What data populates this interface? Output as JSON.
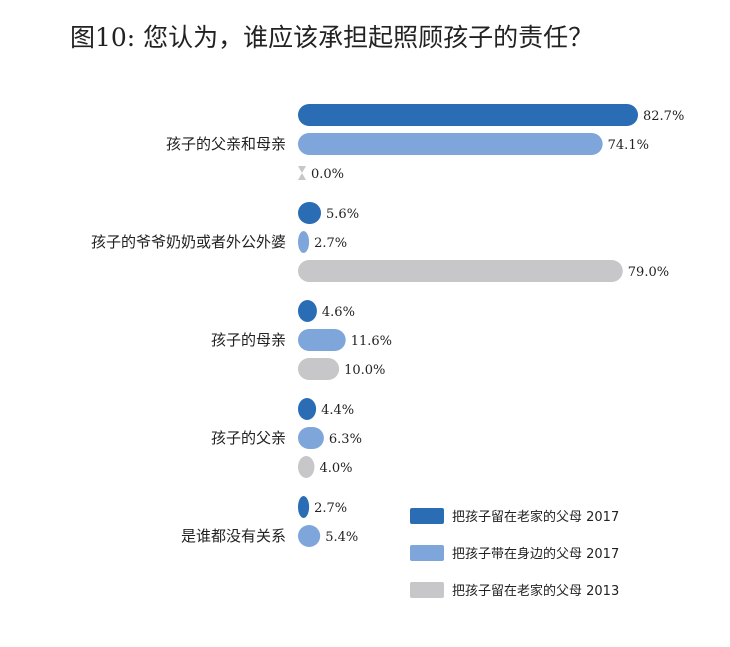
{
  "title": "图10: 您认为，谁应该承担起照顾孩子的责任？",
  "colors": {
    "s2017_home": "#2a6db5",
    "s2017_with": "#7fa6db",
    "s2013_home": "#c7c7c9"
  },
  "chart_data": {
    "type": "bar",
    "orientation": "horizontal",
    "categories": [
      "孩子的父亲和母亲",
      "孩子的爷爷奶奶或者外公外婆",
      "孩子的母亲",
      "孩子的父亲",
      "是谁都没有关系"
    ],
    "series": [
      {
        "name": "把孩子留在老家的父母 2017",
        "color": "#2a6db5",
        "values": [
          82.7,
          5.6,
          4.6,
          4.4,
          2.7
        ],
        "labels": [
          "82.7%",
          "5.6%",
          "4.6%",
          "4.4%",
          "2.7%"
        ]
      },
      {
        "name": "把孩子带在身边的父母 2017",
        "color": "#7fa6db",
        "values": [
          74.1,
          2.7,
          11.6,
          6.3,
          5.4
        ],
        "labels": [
          "74.1%",
          "2.7%",
          "11.6%",
          "6.3%",
          "5.4%"
        ]
      },
      {
        "name": "把孩子留在老家的父母 2013",
        "color": "#c7c7c9",
        "values": [
          0.0,
          79.0,
          10.0,
          4.0,
          null
        ],
        "labels": [
          "0.0%",
          "79.0%",
          "10.0%",
          "4.0%",
          null
        ]
      }
    ],
    "xlim": [
      0,
      82.7
    ],
    "legend_position": "bottom-right"
  }
}
